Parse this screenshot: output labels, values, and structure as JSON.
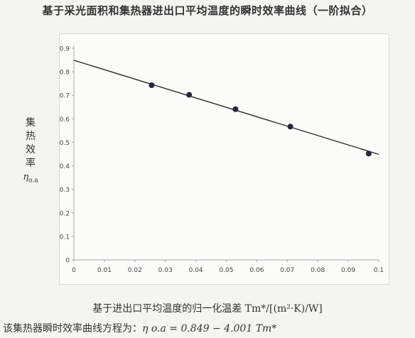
{
  "chart_data": {
    "type": "scatter",
    "title": "基于采光面积和集热器进出口平均温度的瞬时效率曲线（一阶拟合）",
    "ylabel_chars": [
      "集",
      "热",
      "效",
      "率"
    ],
    "ylabel_symbol": "η",
    "ylabel_subscript": "o.a",
    "xlabel": "基于进出口平均温度的归一化温差 Tm*/[(m²·K)/W]",
    "xlim": [
      0,
      0.1
    ],
    "ylim": [
      0,
      0.9
    ],
    "x_ticks": [
      "0",
      "0.01",
      "0.02",
      "0.03",
      "0.04",
      "0.05",
      "0.06",
      "0.07",
      "0.08",
      "0.09",
      "0.1"
    ],
    "y_ticks": [
      "0",
      "0.1",
      "0.2",
      "0.3",
      "0.4",
      "0.5",
      "0.6",
      "0.7",
      "0.8",
      "0.9"
    ],
    "grid": false,
    "points": [
      {
        "x": 0.0255,
        "y": 0.743
      },
      {
        "x": 0.0378,
        "y": 0.702
      },
      {
        "x": 0.053,
        "y": 0.641
      },
      {
        "x": 0.071,
        "y": 0.567
      },
      {
        "x": 0.0967,
        "y": 0.452
      }
    ],
    "fit_line": {
      "intercept": 0.849,
      "slope": -4.001,
      "x_range": [
        0,
        0.1
      ]
    },
    "equation_label": "该集热器瞬时效率曲线方程为：",
    "equation_formula": "η o.a = 0.849 − 4.001 Tm*"
  }
}
